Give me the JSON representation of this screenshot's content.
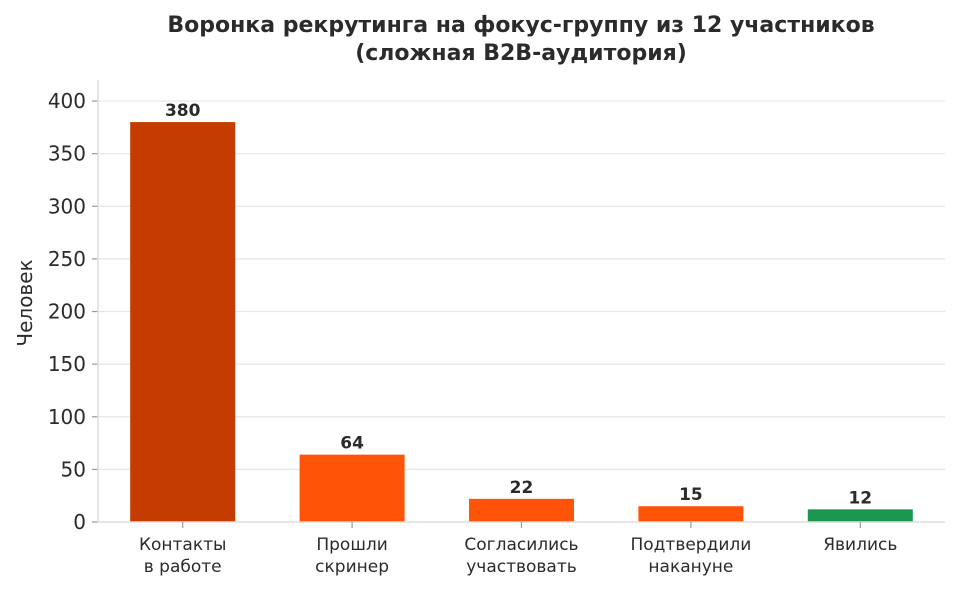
{
  "chart_data": {
    "type": "bar",
    "title": "Воронка рекрутинга на фокус-группу из 12 участников",
    "subtitle": "(сложная B2B-аудитория)",
    "xlabel": "",
    "ylabel": "Человек",
    "ylim": [
      0,
      420
    ],
    "yticks": [
      0,
      50,
      100,
      150,
      200,
      250,
      300,
      350,
      400
    ],
    "grid": true,
    "categories": [
      [
        "Контакты",
        "в работе"
      ],
      [
        "Прошли",
        "скринер"
      ],
      [
        "Согласились",
        "участвовать"
      ],
      [
        "Подтвердили",
        "накануне"
      ],
      [
        "Явились"
      ]
    ],
    "values": [
      380,
      64,
      22,
      15,
      12
    ],
    "colors": [
      "#c43c00",
      "#ff5408",
      "#ff5408",
      "#ff5408",
      "#1a9650"
    ]
  }
}
